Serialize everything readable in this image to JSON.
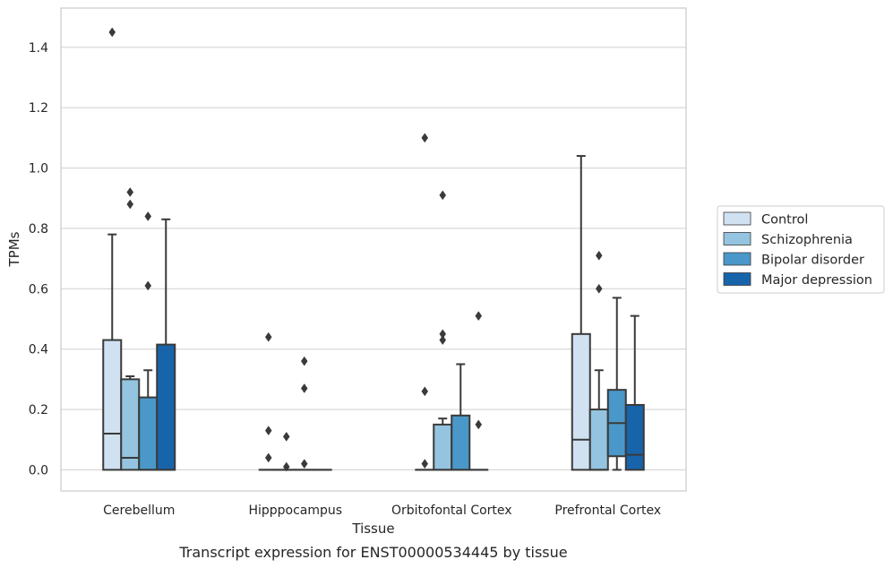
{
  "chart_data": {
    "type": "box",
    "xlabel": "Tissue",
    "ylabel": "TPMs",
    "caption": "Transcript expression for ENST00000534445 by tissue",
    "ylim": [
      -0.07,
      1.53
    ],
    "yticks": [
      0.0,
      0.2,
      0.4,
      0.6,
      0.8,
      1.0,
      1.2,
      1.4
    ],
    "ytick_labels": [
      "0.0",
      "0.2",
      "0.4",
      "0.6",
      "0.8",
      "1.0",
      "1.2",
      "1.4"
    ],
    "grid": "horizontal",
    "legend_position": "right",
    "categories": [
      "Cerebellum",
      "Hipppocampus",
      "Orbitofontal Cortex",
      "Prefrontal Cortex"
    ],
    "series": [
      {
        "name": "Control",
        "color": "#d0e1f2",
        "boxes": [
          {
            "whislo": 0,
            "q1": 0,
            "med": 0.12,
            "q3": 0.43,
            "whishi": 0.78,
            "fliers": [
              1.45
            ]
          },
          {
            "whislo": 0,
            "q1": 0,
            "med": 0,
            "q3": 0,
            "whishi": 0,
            "fliers": [
              0.44,
              0.13,
              0.04
            ]
          },
          {
            "whislo": 0,
            "q1": 0,
            "med": 0,
            "q3": 0,
            "whishi": 0,
            "fliers": [
              1.1,
              0.26,
              0.02
            ]
          },
          {
            "whislo": 0,
            "q1": 0,
            "med": 0.1,
            "q3": 0.45,
            "whishi": 1.04,
            "fliers": []
          }
        ]
      },
      {
        "name": "Schizophrenia",
        "color": "#94c4df",
        "boxes": [
          {
            "whislo": 0,
            "q1": 0,
            "med": 0.04,
            "q3": 0.3,
            "whishi": 0.31,
            "fliers": [
              0.92,
              0.88
            ]
          },
          {
            "whislo": 0,
            "q1": 0,
            "med": 0,
            "q3": 0,
            "whishi": 0,
            "fliers": [
              0.11,
              0.01
            ]
          },
          {
            "whislo": 0,
            "q1": 0,
            "med": 0,
            "q3": 0.15,
            "whishi": 0.17,
            "fliers": [
              0.91,
              0.45,
              0.43
            ]
          },
          {
            "whislo": 0,
            "q1": 0,
            "med": 0,
            "q3": 0.2,
            "whishi": 0.33,
            "fliers": [
              0.71,
              0.6
            ]
          }
        ]
      },
      {
        "name": "Bipolar disorder",
        "color": "#4a98c9",
        "boxes": [
          {
            "whislo": 0,
            "q1": 0,
            "med": 0,
            "q3": 0.24,
            "whishi": 0.33,
            "fliers": [
              0.84,
              0.61
            ]
          },
          {
            "whislo": 0,
            "q1": 0,
            "med": 0,
            "q3": 0,
            "whishi": 0,
            "fliers": [
              0.36,
              0.27,
              0.02
            ]
          },
          {
            "whislo": 0,
            "q1": 0,
            "med": 0,
            "q3": 0.18,
            "whishi": 0.35,
            "fliers": []
          },
          {
            "whislo": 0,
            "q1": 0.045,
            "med": 0.155,
            "q3": 0.265,
            "whishi": 0.57,
            "fliers": []
          }
        ]
      },
      {
        "name": "Major depression",
        "color": "#1764ab",
        "boxes": [
          {
            "whislo": 0,
            "q1": 0,
            "med": 0,
            "q3": 0.415,
            "whishi": 0.83,
            "fliers": []
          },
          {
            "whislo": 0,
            "q1": 0,
            "med": 0,
            "q3": 0,
            "whishi": 0,
            "fliers": []
          },
          {
            "whislo": 0,
            "q1": 0,
            "med": 0,
            "q3": 0,
            "whishi": 0,
            "fliers": [
              0.51,
              0.15
            ]
          },
          {
            "whislo": 0,
            "q1": 0,
            "med": 0.05,
            "q3": 0.215,
            "whishi": 0.51,
            "fliers": []
          }
        ]
      }
    ]
  }
}
